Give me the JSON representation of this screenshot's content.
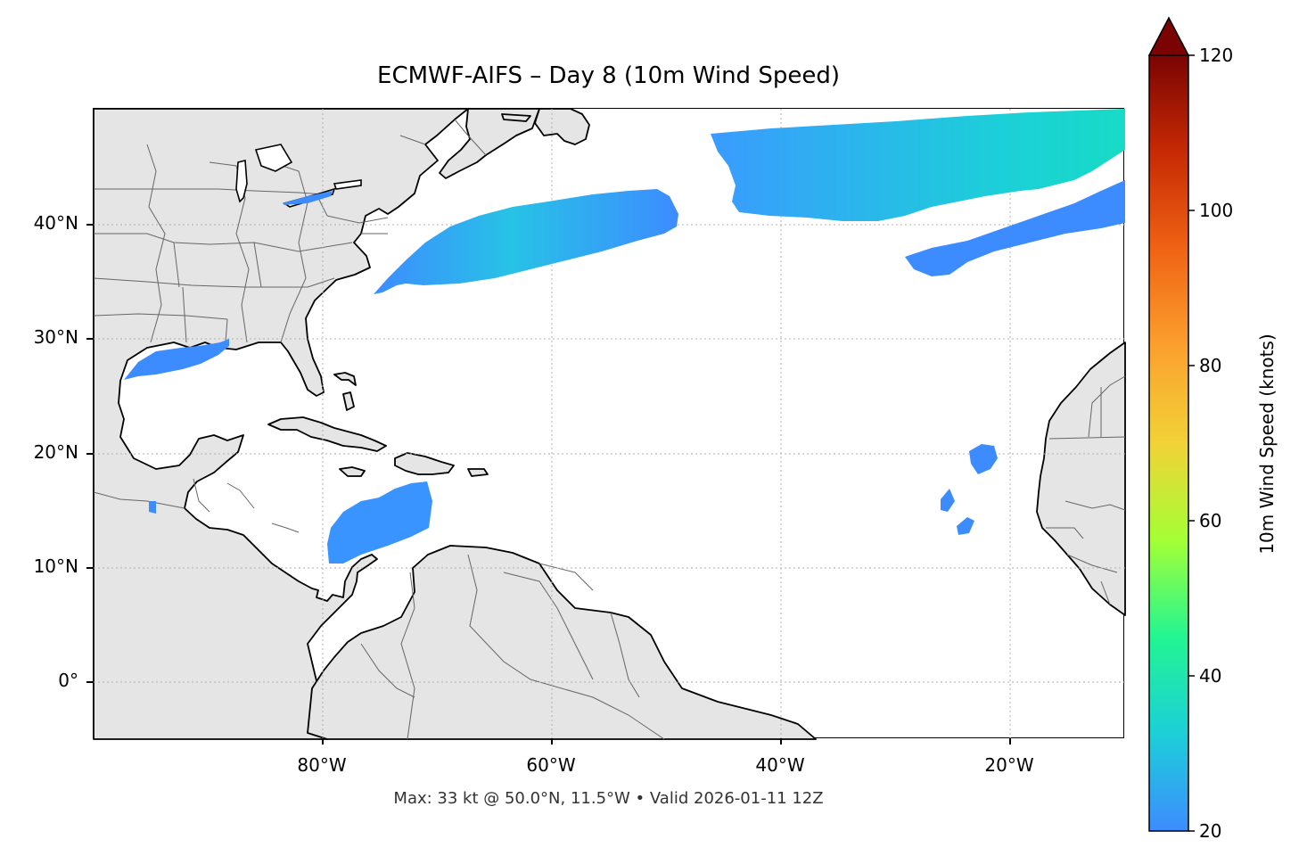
{
  "title": "ECMWF-AIFS – Day 8 (10m Wind Speed)",
  "footer": "Max: 33 kt @ 50.0°N, 11.5°W • Valid 2026-01-11 12Z",
  "colorbar": {
    "label": "10m Wind Speed (knots)",
    "ticks": [
      "20",
      "40",
      "60",
      "80",
      "100",
      "120"
    ],
    "min": 20,
    "max": 120,
    "extend": "max",
    "colors": [
      "#3d8cff",
      "#1ccfd8",
      "#22f592",
      "#a4ff35",
      "#f1d237",
      "#fba02e",
      "#f06314",
      "#c72a05",
      "#7a0403"
    ]
  },
  "map": {
    "lon_labels": [
      "80°W",
      "60°W",
      "40°W",
      "20°W"
    ],
    "lat_labels": [
      "40°N",
      "30°N",
      "20°N",
      "10°N",
      "0°"
    ],
    "land_color": "#e5e5e5",
    "coast_color": "#000000",
    "border_color": "#666666",
    "gridlines": true
  }
}
